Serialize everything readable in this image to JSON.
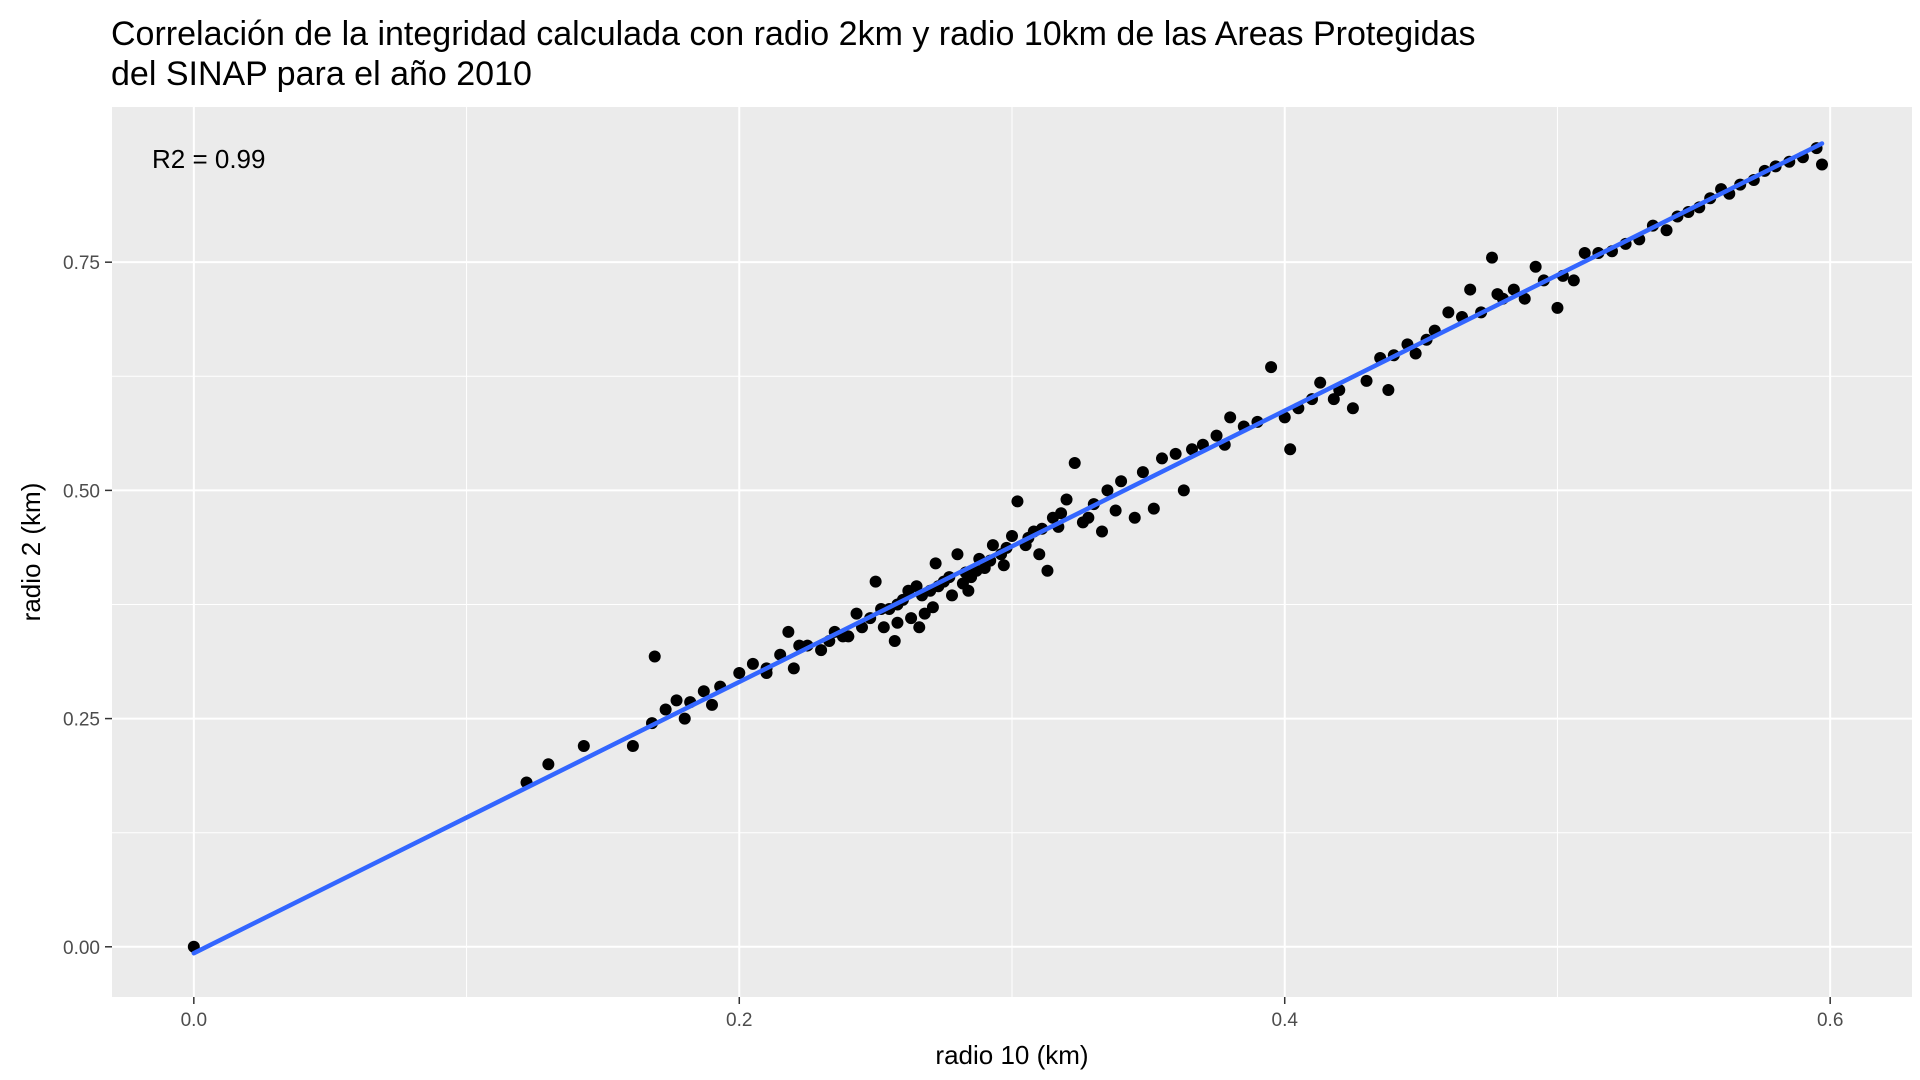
{
  "chart_data": {
    "type": "scatter",
    "title_lines": [
      "Correlación de la integridad calculada con radio 2km y radio 10km de las Areas Protegidas",
      "del SINAP para el año 2010"
    ],
    "xlabel": "radio 10 (km)",
    "ylabel": "radio 2 (km)",
    "xlim": [
      -0.03,
      0.63
    ],
    "ylim": [
      -0.055,
      0.92
    ],
    "x_ticks": [
      0.0,
      0.2,
      0.4,
      0.6
    ],
    "x_tick_labels": [
      "0.0",
      "0.2",
      "0.4",
      "0.6"
    ],
    "y_ticks": [
      0.0,
      0.25,
      0.5,
      0.75
    ],
    "y_tick_labels": [
      "0.00",
      "0.25",
      "0.50",
      "0.75"
    ],
    "grid": true,
    "annotation": "R2 = 0.99",
    "fit_line": {
      "color": "#3366ff",
      "x": [
        0.0,
        0.597
      ],
      "y": [
        -0.007,
        0.88
      ]
    },
    "point_color": "#000000",
    "points": [
      [
        0.0,
        0.0
      ],
      [
        0.122,
        0.18
      ],
      [
        0.13,
        0.2
      ],
      [
        0.143,
        0.22
      ],
      [
        0.161,
        0.22
      ],
      [
        0.168,
        0.245
      ],
      [
        0.169,
        0.318
      ],
      [
        0.173,
        0.26
      ],
      [
        0.177,
        0.27
      ],
      [
        0.18,
        0.25
      ],
      [
        0.182,
        0.268
      ],
      [
        0.187,
        0.28
      ],
      [
        0.19,
        0.265
      ],
      [
        0.193,
        0.285
      ],
      [
        0.2,
        0.3
      ],
      [
        0.205,
        0.31
      ],
      [
        0.21,
        0.3
      ],
      [
        0.215,
        0.32
      ],
      [
        0.218,
        0.345
      ],
      [
        0.22,
        0.305
      ],
      [
        0.225,
        0.33
      ],
      [
        0.23,
        0.325
      ],
      [
        0.235,
        0.345
      ],
      [
        0.24,
        0.34
      ],
      [
        0.243,
        0.365
      ],
      [
        0.248,
        0.36
      ],
      [
        0.25,
        0.4
      ],
      [
        0.253,
        0.35
      ],
      [
        0.255,
        0.37
      ],
      [
        0.257,
        0.335
      ],
      [
        0.26,
        0.38
      ],
      [
        0.263,
        0.36
      ],
      [
        0.265,
        0.395
      ],
      [
        0.268,
        0.365
      ],
      [
        0.27,
        0.39
      ],
      [
        0.272,
        0.42
      ],
      [
        0.275,
        0.4
      ],
      [
        0.278,
        0.385
      ],
      [
        0.28,
        0.43
      ],
      [
        0.283,
        0.41
      ],
      [
        0.285,
        0.405
      ],
      [
        0.288,
        0.425
      ],
      [
        0.29,
        0.415
      ],
      [
        0.293,
        0.44
      ],
      [
        0.296,
        0.43
      ],
      [
        0.3,
        0.45
      ],
      [
        0.302,
        0.488
      ],
      [
        0.305,
        0.44
      ],
      [
        0.308,
        0.455
      ],
      [
        0.31,
        0.43
      ],
      [
        0.313,
        0.412
      ],
      [
        0.315,
        0.47
      ],
      [
        0.318,
        0.475
      ],
      [
        0.32,
        0.49
      ],
      [
        0.323,
        0.53
      ],
      [
        0.326,
        0.465
      ],
      [
        0.33,
        0.485
      ],
      [
        0.333,
        0.455
      ],
      [
        0.335,
        0.5
      ],
      [
        0.34,
        0.51
      ],
      [
        0.345,
        0.47
      ],
      [
        0.348,
        0.52
      ],
      [
        0.352,
        0.48
      ],
      [
        0.355,
        0.535
      ],
      [
        0.36,
        0.54
      ],
      [
        0.363,
        0.5
      ],
      [
        0.366,
        0.545
      ],
      [
        0.37,
        0.55
      ],
      [
        0.375,
        0.56
      ],
      [
        0.378,
        0.55
      ],
      [
        0.38,
        0.58
      ],
      [
        0.385,
        0.57
      ],
      [
        0.39,
        0.575
      ],
      [
        0.395,
        0.635
      ],
      [
        0.4,
        0.58
      ],
      [
        0.402,
        0.545
      ],
      [
        0.405,
        0.59
      ],
      [
        0.41,
        0.6
      ],
      [
        0.413,
        0.618
      ],
      [
        0.418,
        0.6
      ],
      [
        0.42,
        0.61
      ],
      [
        0.425,
        0.59
      ],
      [
        0.43,
        0.62
      ],
      [
        0.435,
        0.645
      ],
      [
        0.438,
        0.61
      ],
      [
        0.44,
        0.648
      ],
      [
        0.445,
        0.66
      ],
      [
        0.448,
        0.65
      ],
      [
        0.452,
        0.665
      ],
      [
        0.455,
        0.675
      ],
      [
        0.46,
        0.695
      ],
      [
        0.465,
        0.69
      ],
      [
        0.468,
        0.72
      ],
      [
        0.472,
        0.695
      ],
      [
        0.476,
        0.755
      ],
      [
        0.478,
        0.715
      ],
      [
        0.48,
        0.71
      ],
      [
        0.484,
        0.72
      ],
      [
        0.488,
        0.71
      ],
      [
        0.492,
        0.745
      ],
      [
        0.495,
        0.73
      ],
      [
        0.5,
        0.7
      ],
      [
        0.502,
        0.735
      ],
      [
        0.506,
        0.73
      ],
      [
        0.51,
        0.76
      ],
      [
        0.515,
        0.76
      ],
      [
        0.52,
        0.762
      ],
      [
        0.525,
        0.77
      ],
      [
        0.53,
        0.775
      ],
      [
        0.535,
        0.79
      ],
      [
        0.54,
        0.785
      ],
      [
        0.544,
        0.8
      ],
      [
        0.548,
        0.805
      ],
      [
        0.552,
        0.81
      ],
      [
        0.556,
        0.82
      ],
      [
        0.56,
        0.83
      ],
      [
        0.563,
        0.825
      ],
      [
        0.567,
        0.835
      ],
      [
        0.572,
        0.84
      ],
      [
        0.576,
        0.85
      ],
      [
        0.58,
        0.855
      ],
      [
        0.585,
        0.86
      ],
      [
        0.59,
        0.865
      ],
      [
        0.595,
        0.875
      ],
      [
        0.597,
        0.857
      ],
      [
        0.21,
        0.305
      ],
      [
        0.222,
        0.33
      ],
      [
        0.233,
        0.335
      ],
      [
        0.238,
        0.34
      ],
      [
        0.245,
        0.35
      ],
      [
        0.252,
        0.37
      ],
      [
        0.258,
        0.375
      ],
      [
        0.262,
        0.39
      ],
      [
        0.267,
        0.385
      ],
      [
        0.273,
        0.395
      ],
      [
        0.277,
        0.405
      ],
      [
        0.282,
        0.398
      ],
      [
        0.287,
        0.412
      ],
      [
        0.292,
        0.423
      ],
      [
        0.298,
        0.437
      ],
      [
        0.306,
        0.448
      ],
      [
        0.311,
        0.458
      ],
      [
        0.317,
        0.46
      ],
      [
        0.328,
        0.47
      ],
      [
        0.338,
        0.478
      ],
      [
        0.258,
        0.355
      ],
      [
        0.266,
        0.35
      ],
      [
        0.271,
        0.372
      ],
      [
        0.284,
        0.39
      ],
      [
        0.297,
        0.418
      ]
    ]
  }
}
